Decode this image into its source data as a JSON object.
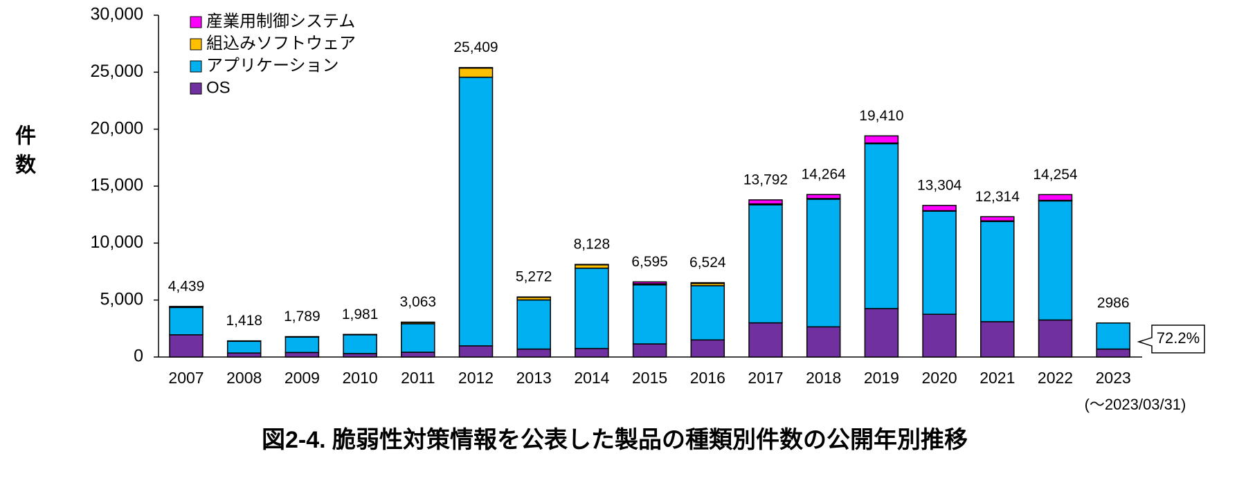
{
  "chart_data": {
    "type": "stacked-bar",
    "title": "図2-4. 脆弱性対策情報を公表した製品の種類別件数の公開年別推移",
    "ylabel": "件数",
    "subtitle": "(～2023/03/31)",
    "annotation": "72.2%",
    "categories": [
      "2007",
      "2008",
      "2009",
      "2010",
      "2011",
      "2012",
      "2013",
      "2014",
      "2015",
      "2016",
      "2017",
      "2018",
      "2019",
      "2020",
      "2021",
      "2022",
      "2023"
    ],
    "series": [
      {
        "name": "OS",
        "color": "#7030a0",
        "values": [
          1950,
          350,
          400,
          300,
          420,
          980,
          700,
          750,
          1150,
          1500,
          3000,
          2650,
          4250,
          3750,
          3100,
          3250,
          700
        ]
      },
      {
        "name": "アプリケーション",
        "color": "#00b0f0",
        "values": [
          2400,
          1030,
          1350,
          1650,
          2500,
          23580,
          4310,
          7050,
          5180,
          4760,
          10360,
          11200,
          14470,
          9050,
          8800,
          10450,
          2286
        ]
      },
      {
        "name": "組込みソフトウェア",
        "color": "#ffc000",
        "values": [
          60,
          30,
          30,
          25,
          120,
          800,
          230,
          290,
          100,
          200,
          80,
          60,
          60,
          40,
          50,
          50,
          0
        ]
      },
      {
        "name": "産業用制御システム",
        "color": "#ff00ff",
        "values": [
          29,
          8,
          9,
          6,
          23,
          49,
          32,
          38,
          165,
          64,
          352,
          354,
          630,
          464,
          364,
          504,
          0
        ]
      }
    ],
    "totals": [
      4439,
      1418,
      1789,
      1981,
      3063,
      25409,
      5272,
      8128,
      6595,
      6524,
      13792,
      14264,
      19410,
      13304,
      12314,
      14254,
      2986
    ],
    "total_labels": [
      "4,439",
      "1,418",
      "1,789",
      "1,981",
      "3,063",
      "25,409",
      "5,272",
      "8,128",
      "6,595",
      "6,524",
      "13,792",
      "14,264",
      "19,410",
      "13,304",
      "12,314",
      "14,254",
      "2986"
    ],
    "ylim": [
      0,
      30000
    ],
    "yticks": [
      0,
      {
        "value": 5000,
        "label": "5,000"
      },
      {
        "value": 10000,
        "label": "10,000"
      },
      {
        "value": 15000,
        "label": "15,000"
      },
      {
        "value": 20000,
        "label": "20,000"
      },
      {
        "value": 25000,
        "label": "25,000"
      },
      {
        "value": 30000,
        "label": "30,000"
      }
    ],
    "grid": false
  }
}
